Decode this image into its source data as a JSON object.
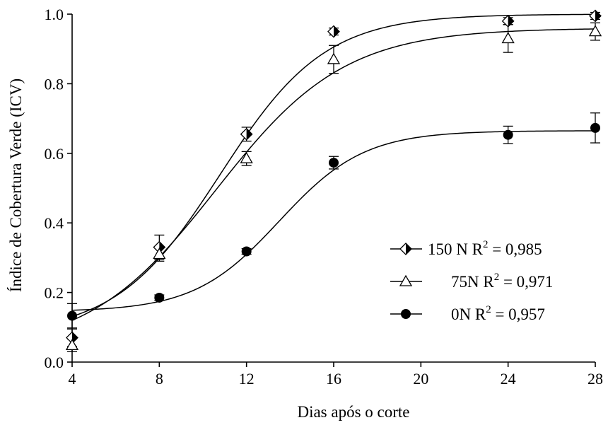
{
  "chart_data": {
    "type": "scatter",
    "xlabel": "Dias após o corte",
    "ylabel": "Índice de Cobertura Verde (ICV)",
    "xlim": [
      4,
      28
    ],
    "ylim": [
      0.0,
      1.0
    ],
    "x_ticks": [
      4,
      8,
      12,
      16,
      20,
      24,
      28
    ],
    "x_tick_labels": [
      "4",
      "8",
      "12",
      "16",
      "20",
      "24",
      "28"
    ],
    "y_ticks": [
      0.0,
      0.2,
      0.4,
      0.6,
      0.8,
      1.0
    ],
    "y_tick_labels": [
      "0.0",
      "0.2",
      "0.4",
      "0.6",
      "0.8",
      "1.0"
    ],
    "grid": false,
    "legend_position": "lower-right",
    "series": [
      {
        "name": "150 N",
        "r2_label": "150 N R",
        "r2_value": "= 0,985",
        "marker": "half-filled-diamond",
        "x": [
          4,
          8,
          12,
          16,
          24,
          28
        ],
        "y": [
          0.07,
          0.33,
          0.655,
          0.95,
          0.98,
          0.995
        ],
        "error": [
          0.025,
          0.035,
          0.02,
          0.01,
          0.01,
          0.01
        ],
        "fit": {
          "a": 0.92,
          "b": 10.8,
          "c": 2.4,
          "y0": 0.08
        }
      },
      {
        "name": "75N",
        "r2_label": "75N R",
        "r2_value": "= 0,971",
        "marker": "open-triangle",
        "x": [
          4,
          8,
          12,
          16,
          24,
          28
        ],
        "y": [
          0.048,
          0.31,
          0.585,
          0.87,
          0.93,
          0.95
        ],
        "error": [
          0.018,
          0.02,
          0.02,
          0.04,
          0.04,
          0.025
        ],
        "fit": {
          "a": 0.93,
          "b": 10.6,
          "c": 2.95,
          "y0": 0.03
        }
      },
      {
        "name": "0N",
        "r2_label": "0N   R",
        "r2_value": "= 0,957",
        "marker": "filled-circle",
        "x": [
          4,
          8,
          12,
          16,
          24,
          28
        ],
        "y": [
          0.133,
          0.185,
          0.318,
          0.573,
          0.653,
          0.673
        ],
        "error": [
          0.035,
          0.008,
          0.008,
          0.018,
          0.025,
          0.043
        ],
        "fit": {
          "a": 0.52,
          "b": 13.5,
          "c": 1.95,
          "y0": 0.145
        }
      }
    ]
  }
}
